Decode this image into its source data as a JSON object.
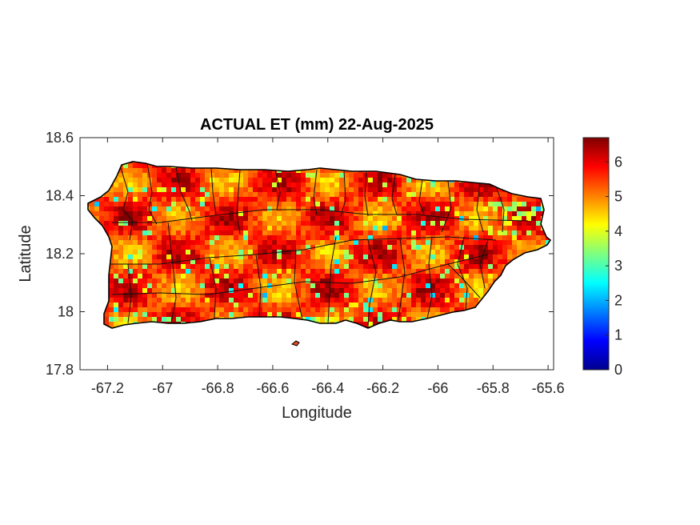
{
  "chart_data": {
    "type": "heatmap",
    "title": "ACTUAL ET (mm) 22-Aug-2025",
    "xlabel": "Longitude",
    "ylabel": "Latitude",
    "xlim": [
      -67.3,
      -65.58
    ],
    "ylim": [
      17.8,
      18.6
    ],
    "x_ticks": [
      "-67.2",
      "-67",
      "-66.8",
      "-66.6",
      "-66.4",
      "-66.2",
      "-66",
      "-65.8",
      "-65.6"
    ],
    "x_tick_values": [
      -67.2,
      -67.0,
      -66.8,
      -66.6,
      -66.4,
      -66.2,
      -66.0,
      -65.8,
      -65.6
    ],
    "y_ticks": [
      "17.8",
      "18",
      "18.2",
      "18.4",
      "18.6"
    ],
    "y_tick_values": [
      17.8,
      18.0,
      18.2,
      18.4,
      18.6
    ],
    "colorbar": {
      "colormap": "jet",
      "range": [
        0,
        6.7
      ],
      "ticks": [
        "0",
        "1",
        "2",
        "3",
        "4",
        "5",
        "6"
      ],
      "tick_values": [
        0,
        1,
        2,
        3,
        4,
        5,
        6
      ]
    },
    "typical_value_range": [
      4.5,
      6.5
    ],
    "grid": false
  }
}
